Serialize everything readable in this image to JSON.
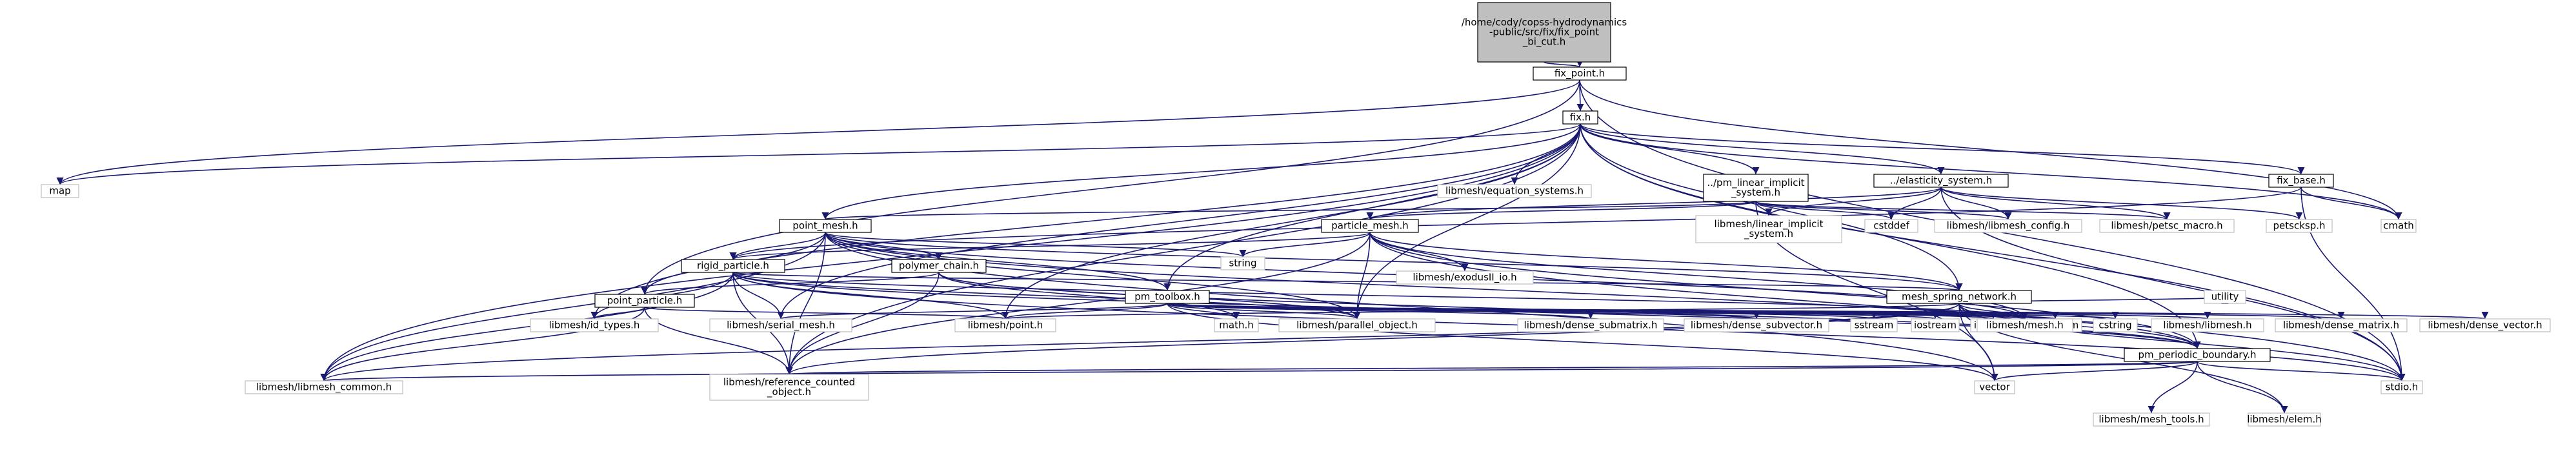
{
  "graph": {
    "title": "",
    "colors": {
      "edge": "#191970",
      "root_fill": "#bfbfbf",
      "node_border": "#000000",
      "external_border": "#bfbfbf"
    },
    "nodes": [
      {
        "id": "root",
        "lines": [
          "/home/cody/copss-hydrodynamics",
          "-public/src/fix/fix_point",
          "_bi_cut.h"
        ],
        "kind": "root"
      },
      {
        "id": "fix_point_h",
        "lines": [
          "fix_point.h"
        ],
        "kind": "node"
      },
      {
        "id": "fix_h",
        "lines": [
          "fix.h"
        ],
        "kind": "node"
      },
      {
        "id": "map",
        "lines": [
          "map"
        ],
        "kind": "ext"
      },
      {
        "id": "equation_systems_h",
        "lines": [
          "libmesh/equation_systems.h"
        ],
        "kind": "ext"
      },
      {
        "id": "pm_linear_implicit_system_h",
        "lines": [
          "../pm_linear_implicit",
          "_system.h"
        ],
        "kind": "node"
      },
      {
        "id": "elasticity_system_h",
        "lines": [
          "../elasticity_system.h"
        ],
        "kind": "node"
      },
      {
        "id": "fix_base_h",
        "lines": [
          "fix_base.h"
        ],
        "kind": "node"
      },
      {
        "id": "point_mesh_h",
        "lines": [
          "point_mesh.h"
        ],
        "kind": "node"
      },
      {
        "id": "libmesh_linear_implicit_system_h",
        "lines": [
          "libmesh/linear_implicit",
          "_system.h"
        ],
        "kind": "ext"
      },
      {
        "id": "cstddef",
        "lines": [
          "cstddef"
        ],
        "kind": "ext"
      },
      {
        "id": "libmesh_config_h",
        "lines": [
          "libmesh/libmesh_config.h"
        ],
        "kind": "ext"
      },
      {
        "id": "petsc_macro_h",
        "lines": [
          "libmesh/petsc_macro.h"
        ],
        "kind": "ext"
      },
      {
        "id": "petscksp_h",
        "lines": [
          "petscksp.h"
        ],
        "kind": "ext"
      },
      {
        "id": "cmath",
        "lines": [
          "cmath"
        ],
        "kind": "ext"
      },
      {
        "id": "particle_mesh_h",
        "lines": [
          "particle_mesh.h"
        ],
        "kind": "node"
      },
      {
        "id": "string",
        "lines": [
          "string"
        ],
        "kind": "ext"
      },
      {
        "id": "polymer_chain_h",
        "lines": [
          "polymer_chain.h"
        ],
        "kind": "node"
      },
      {
        "id": "rigid_particle_h",
        "lines": [
          "rigid_particle.h"
        ],
        "kind": "node"
      },
      {
        "id": "exodusII_io_h",
        "lines": [
          "libmesh/exodusII_io.h"
        ],
        "kind": "ext"
      },
      {
        "id": "point_particle_h",
        "lines": [
          "point_particle.h"
        ],
        "kind": "node"
      },
      {
        "id": "pm_toolbox_h",
        "lines": [
          "pm_toolbox.h"
        ],
        "kind": "node"
      },
      {
        "id": "mesh_spring_network_h",
        "lines": [
          "mesh_spring_network.h"
        ],
        "kind": "node"
      },
      {
        "id": "id_types_h",
        "lines": [
          "libmesh/id_types.h"
        ],
        "kind": "ext"
      },
      {
        "id": "serial_mesh_h",
        "lines": [
          "libmesh/serial_mesh.h"
        ],
        "kind": "ext"
      },
      {
        "id": "point_h",
        "lines": [
          "libmesh/point.h"
        ],
        "kind": "ext"
      },
      {
        "id": "math_h",
        "lines": [
          "math.h"
        ],
        "kind": "ext"
      },
      {
        "id": "parallel_object_h",
        "lines": [
          "libmesh/parallel_object.h"
        ],
        "kind": "ext"
      },
      {
        "id": "dense_submatrix_h",
        "lines": [
          "libmesh/dense_submatrix.h"
        ],
        "kind": "ext"
      },
      {
        "id": "dense_subvector_h",
        "lines": [
          "libmesh/dense_subvector.h"
        ],
        "kind": "ext"
      },
      {
        "id": "sstream",
        "lines": [
          "sstream"
        ],
        "kind": "ext"
      },
      {
        "id": "iostream",
        "lines": [
          "iostream"
        ],
        "kind": "ext"
      },
      {
        "id": "iomanip",
        "lines": [
          "iomanip"
        ],
        "kind": "ext"
      },
      {
        "id": "algorithm",
        "lines": [
          "algorithm"
        ],
        "kind": "ext"
      },
      {
        "id": "cstring",
        "lines": [
          "cstring"
        ],
        "kind": "ext"
      },
      {
        "id": "libmesh_h",
        "lines": [
          "libmesh/libmesh.h"
        ],
        "kind": "ext"
      },
      {
        "id": "dense_matrix_h",
        "lines": [
          "libmesh/dense_matrix.h"
        ],
        "kind": "ext"
      },
      {
        "id": "dense_vector_h",
        "lines": [
          "libmesh/dense_vector.h"
        ],
        "kind": "ext"
      },
      {
        "id": "mesh_h",
        "lines": [
          "libmesh/mesh.h"
        ],
        "kind": "ext"
      },
      {
        "id": "utility",
        "lines": [
          "utility"
        ],
        "kind": "ext"
      },
      {
        "id": "pm_periodic_boundary_h",
        "lines": [
          "pm_periodic_boundary.h"
        ],
        "kind": "node"
      },
      {
        "id": "libmesh_common_h",
        "lines": [
          "libmesh/libmesh_common.h"
        ],
        "kind": "ext"
      },
      {
        "id": "reference_counted_object_h",
        "lines": [
          "libmesh/reference_counted",
          "_object.h"
        ],
        "kind": "ext"
      },
      {
        "id": "vector",
        "lines": [
          "vector"
        ],
        "kind": "ext"
      },
      {
        "id": "mesh_tools_h",
        "lines": [
          "libmesh/mesh_tools.h"
        ],
        "kind": "ext"
      },
      {
        "id": "elem_h",
        "lines": [
          "libmesh/elem.h"
        ],
        "kind": "ext"
      },
      {
        "id": "stdio_h",
        "lines": [
          "stdio.h"
        ],
        "kind": "ext"
      }
    ],
    "edges": [
      [
        "root",
        "fix_point_h"
      ],
      [
        "fix_point_h",
        "fix_h"
      ],
      [
        "fix_point_h",
        "map"
      ],
      [
        "fix_point_h",
        "point_particle_h"
      ],
      [
        "fix_point_h",
        "cmath"
      ],
      [
        "fix_point_h",
        "stdio_h"
      ],
      [
        "fix_h",
        "map"
      ],
      [
        "fix_h",
        "equation_systems_h"
      ],
      [
        "fix_h",
        "pm_linear_implicit_system_h"
      ],
      [
        "fix_h",
        "elasticity_system_h"
      ],
      [
        "fix_h",
        "fix_base_h"
      ],
      [
        "fix_h",
        "point_mesh_h"
      ],
      [
        "fix_h",
        "pm_toolbox_h"
      ],
      [
        "fix_h",
        "mesh_spring_network_h"
      ],
      [
        "fix_h",
        "pm_periodic_boundary_h"
      ],
      [
        "fix_h",
        "id_types_h"
      ],
      [
        "fix_h",
        "serial_mesh_h"
      ],
      [
        "fix_h",
        "point_h"
      ],
      [
        "fix_h",
        "parallel_object_h"
      ],
      [
        "fix_h",
        "libmesh_common_h"
      ],
      [
        "fix_h",
        "reference_counted_object_h"
      ],
      [
        "fix_h",
        "cmath"
      ],
      [
        "fix_h",
        "stdio_h"
      ],
      [
        "pm_linear_implicit_system_h",
        "libmesh_linear_implicit_system_h"
      ],
      [
        "pm_linear_implicit_system_h",
        "cstddef"
      ],
      [
        "pm_linear_implicit_system_h",
        "libmesh_config_h"
      ],
      [
        "pm_linear_implicit_system_h",
        "petsc_macro_h"
      ],
      [
        "pm_linear_implicit_system_h",
        "point_mesh_h"
      ],
      [
        "pm_linear_implicit_system_h",
        "particle_mesh_h"
      ],
      [
        "pm_linear_implicit_system_h",
        "vector"
      ],
      [
        "elasticity_system_h",
        "libmesh_linear_implicit_system_h"
      ],
      [
        "elasticity_system_h",
        "cstddef"
      ],
      [
        "elasticity_system_h",
        "libmesh_config_h"
      ],
      [
        "elasticity_system_h",
        "petsc_macro_h"
      ],
      [
        "elasticity_system_h",
        "petscksp_h"
      ],
      [
        "elasticity_system_h",
        "particle_mesh_h"
      ],
      [
        "elasticity_system_h",
        "stdio_h"
      ],
      [
        "fix_base_h",
        "cmath"
      ],
      [
        "fix_base_h",
        "stdio_h"
      ],
      [
        "fix_base_h",
        "rigid_particle_h"
      ],
      [
        "point_mesh_h",
        "string"
      ],
      [
        "point_mesh_h",
        "polymer_chain_h"
      ],
      [
        "point_mesh_h",
        "rigid_particle_h"
      ],
      [
        "point_mesh_h",
        "point_particle_h"
      ],
      [
        "point_mesh_h",
        "pm_toolbox_h"
      ],
      [
        "point_mesh_h",
        "mesh_spring_network_h"
      ],
      [
        "point_mesh_h",
        "pm_periodic_boundary_h"
      ],
      [
        "point_mesh_h",
        "mesh_h"
      ],
      [
        "point_mesh_h",
        "parallel_object_h"
      ],
      [
        "point_mesh_h",
        "reference_counted_object_h"
      ],
      [
        "point_mesh_h",
        "libmesh_common_h"
      ],
      [
        "point_mesh_h",
        "vector"
      ],
      [
        "particle_mesh_h",
        "string"
      ],
      [
        "particle_mesh_h",
        "exodusII_io_h"
      ],
      [
        "particle_mesh_h",
        "rigid_particle_h"
      ],
      [
        "particle_mesh_h",
        "mesh_spring_network_h"
      ],
      [
        "particle_mesh_h",
        "pm_periodic_boundary_h"
      ],
      [
        "particle_mesh_h",
        "mesh_h"
      ],
      [
        "particle_mesh_h",
        "parallel_object_h"
      ],
      [
        "particle_mesh_h",
        "reference_counted_object_h"
      ],
      [
        "particle_mesh_h",
        "stdio_h"
      ],
      [
        "polymer_chain_h",
        "point_particle_h"
      ],
      [
        "polymer_chain_h",
        "math_h"
      ],
      [
        "polymer_chain_h",
        "parallel_object_h"
      ],
      [
        "polymer_chain_h",
        "reference_counted_object_h"
      ],
      [
        "polymer_chain_h",
        "pm_periodic_boundary_h"
      ],
      [
        "rigid_particle_h",
        "id_types_h"
      ],
      [
        "rigid_particle_h",
        "serial_mesh_h"
      ],
      [
        "rigid_particle_h",
        "point_h"
      ],
      [
        "rigid_particle_h",
        "parallel_object_h"
      ],
      [
        "rigid_particle_h",
        "libmesh_common_h"
      ],
      [
        "rigid_particle_h",
        "reference_counted_object_h"
      ],
      [
        "rigid_particle_h",
        "mesh_h"
      ],
      [
        "rigid_particle_h",
        "mesh_spring_network_h"
      ],
      [
        "rigid_particle_h",
        "pm_periodic_boundary_h"
      ],
      [
        "rigid_particle_h",
        "stdio_h"
      ],
      [
        "point_particle_h",
        "id_types_h"
      ],
      [
        "point_particle_h",
        "point_h"
      ],
      [
        "point_particle_h",
        "libmesh_common_h"
      ],
      [
        "point_particle_h",
        "reference_counted_object_h"
      ],
      [
        "pm_toolbox_h",
        "point_h"
      ],
      [
        "pm_toolbox_h",
        "math_h"
      ],
      [
        "pm_toolbox_h",
        "parallel_object_h"
      ],
      [
        "pm_toolbox_h",
        "dense_submatrix_h"
      ],
      [
        "pm_toolbox_h",
        "dense_subvector_h"
      ],
      [
        "pm_toolbox_h",
        "sstream"
      ],
      [
        "pm_toolbox_h",
        "iostream"
      ],
      [
        "pm_toolbox_h",
        "iomanip"
      ],
      [
        "pm_toolbox_h",
        "algorithm"
      ],
      [
        "pm_toolbox_h",
        "cstring"
      ],
      [
        "pm_toolbox_h",
        "libmesh_h"
      ],
      [
        "pm_toolbox_h",
        "dense_matrix_h"
      ],
      [
        "pm_toolbox_h",
        "dense_vector_h"
      ],
      [
        "pm_toolbox_h",
        "mesh_h"
      ],
      [
        "pm_toolbox_h",
        "vector"
      ],
      [
        "pm_toolbox_h",
        "serial_mesh_h"
      ],
      [
        "mesh_spring_network_h",
        "point_h"
      ],
      [
        "mesh_spring_network_h",
        "mesh_h"
      ],
      [
        "mesh_spring_network_h",
        "utility"
      ],
      [
        "mesh_spring_network_h",
        "pm_periodic_boundary_h"
      ],
      [
        "mesh_spring_network_h",
        "libmesh_common_h"
      ],
      [
        "mesh_spring_network_h",
        "reference_counted_object_h"
      ],
      [
        "mesh_spring_network_h",
        "vector"
      ],
      [
        "mesh_spring_network_h",
        "elem_h"
      ],
      [
        "mesh_spring_network_h",
        "stdio_h"
      ],
      [
        "pm_periodic_boundary_h",
        "libmesh_common_h"
      ],
      [
        "pm_periodic_boundary_h",
        "reference_counted_object_h"
      ],
      [
        "pm_periodic_boundary_h",
        "vector"
      ],
      [
        "pm_periodic_boundary_h",
        "mesh_tools_h"
      ],
      [
        "pm_periodic_boundary_h",
        "elem_h"
      ],
      [
        "pm_periodic_boundary_h",
        "stdio_h"
      ]
    ]
  }
}
